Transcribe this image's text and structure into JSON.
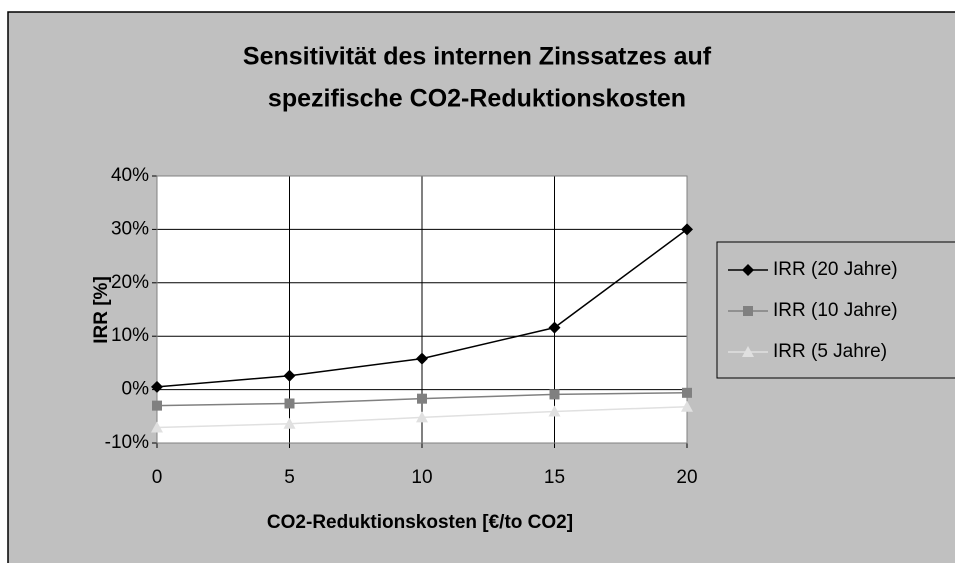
{
  "chart_data": {
    "type": "line",
    "title": [
      "Sensitivität des internen Zinssatzes auf",
      "spezifische CO2-Reduktionskosten"
    ],
    "x_label": "CO2-Reduktionskosten [€/to CO2]",
    "y_label": "IRR [%]",
    "x": [
      0,
      5,
      10,
      15,
      20
    ],
    "xlim": [
      0,
      20
    ],
    "xticks": [
      0,
      5,
      10,
      15,
      20
    ],
    "ylim": [
      -10,
      40
    ],
    "yticks": [
      {
        "value": -10,
        "label": "-10%"
      },
      {
        "value": 0,
        "label": "0%"
      },
      {
        "value": 10,
        "label": "10%"
      },
      {
        "value": 20,
        "label": "20%"
      },
      {
        "value": 30,
        "label": "30%"
      },
      {
        "value": 40,
        "label": "40%"
      }
    ],
    "grid": true,
    "legend": "right",
    "series": [
      {
        "name": "IRR (20 Jahre)",
        "color": "#000000",
        "marker": "diamond",
        "values": [
          0.5,
          2.6,
          5.8,
          11.6,
          30
        ]
      },
      {
        "name": "IRR (10 Jahre)",
        "color": "#808080",
        "marker": "square",
        "values": [
          -3.0,
          -2.6,
          -1.7,
          -0.9,
          -0.6
        ]
      },
      {
        "name": "IRR (5 Jahre)",
        "color": "#e0e0e0",
        "marker": "triangle",
        "values": [
          -7.1,
          -6.4,
          -5.2,
          -4.1,
          -3.2
        ]
      }
    ]
  }
}
